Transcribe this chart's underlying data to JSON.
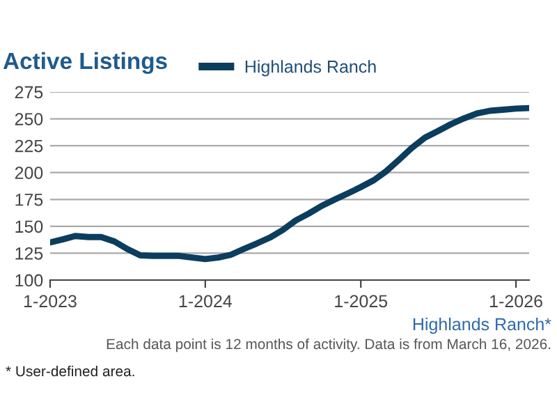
{
  "chart_data": {
    "type": "line",
    "title": "Active Listings",
    "x": [
      "2023-01",
      "2023-02",
      "2023-03",
      "2023-04",
      "2023-05",
      "2023-06",
      "2023-07",
      "2023-08",
      "2023-09",
      "2023-10",
      "2023-11",
      "2023-12",
      "2024-01",
      "2024-02",
      "2024-03",
      "2024-04",
      "2024-05",
      "2024-06",
      "2024-07",
      "2024-08",
      "2024-09",
      "2024-10",
      "2024-11",
      "2024-12",
      "2025-01",
      "2025-02",
      "2025-03",
      "2025-04",
      "2025-05",
      "2025-06",
      "2025-07",
      "2025-08",
      "2025-09",
      "2025-10",
      "2025-11",
      "2025-12",
      "2026-01",
      "2026-02"
    ],
    "series": [
      {
        "name": "Highlands Ranch",
        "color": "#0b3d5e",
        "values": [
          135,
          138,
          141,
          140,
          140,
          136,
          129,
          123,
          122.5,
          122.5,
          122.5,
          121,
          119.5,
          121,
          123.5,
          129,
          134,
          139.5,
          146.5,
          155.5,
          162,
          169,
          175,
          180.5,
          186.5,
          193,
          201,
          212,
          223,
          232.5,
          238.5,
          245,
          250.5,
          255,
          257.5,
          258.5,
          259.5,
          260
        ]
      }
    ],
    "xlim": [
      "2023-01",
      "2026-02"
    ],
    "xticks": [
      {
        "value": "2023-01",
        "label": "1-2023"
      },
      {
        "value": "2024-01",
        "label": "1-2024"
      },
      {
        "value": "2025-01",
        "label": "1-2025"
      },
      {
        "value": "2026-01",
        "label": "1-2026"
      }
    ],
    "ylim": [
      100,
      275
    ],
    "yticks": [
      100,
      125,
      150,
      175,
      200,
      225,
      250,
      275
    ],
    "grid": "y",
    "legend": "top",
    "marker": "none",
    "line_style": "solid",
    "annotations": [
      "Highlands Ranch*",
      "Each data point is 12 months of activity. Data is from March 16, 2026.",
      "* User-defined area."
    ]
  }
}
